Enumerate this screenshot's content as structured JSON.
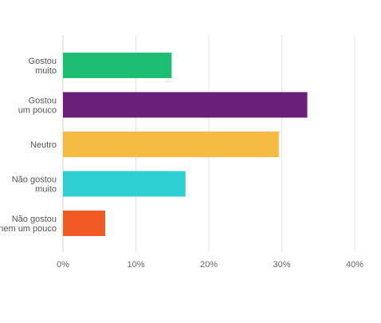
{
  "chart_data": {
    "type": "bar",
    "orientation": "horizontal",
    "categories": [
      [
        "Gostou",
        "muito"
      ],
      [
        "Gostou",
        "um pouco"
      ],
      [
        "Neutro"
      ],
      [
        "Não gostou",
        "muito"
      ],
      [
        "Não gostou",
        "nem um pouco"
      ]
    ],
    "values": [
      14.9,
      33.5,
      29.6,
      16.8,
      5.8
    ],
    "colors": [
      "#1dbd73",
      "#6a1f78",
      "#f6bb43",
      "#2ecfd3",
      "#f15a24"
    ],
    "xlim": [
      0,
      40
    ],
    "x_ticks": [
      "0%",
      "10%",
      "20%",
      "30%",
      "40%"
    ],
    "grid": true,
    "legend": "none"
  }
}
